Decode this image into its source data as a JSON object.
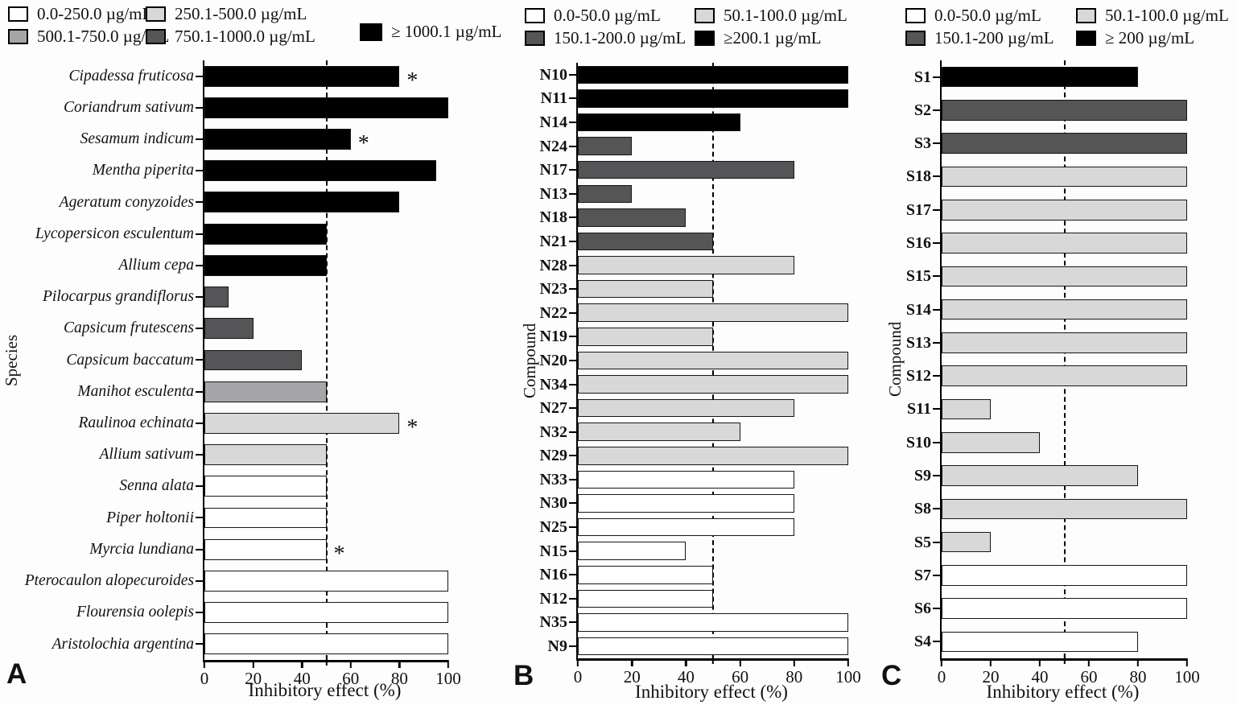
{
  "colors": {
    "white": "#ffffff",
    "light_gray": "#d8d8d8",
    "medium_gray": "#a6a6a9",
    "dark_gray": "#555557",
    "black": "#000000"
  },
  "chart_data": [
    {
      "type": "bar",
      "orientation": "horizontal",
      "panel_label": "A",
      "xlabel": "Inhibitory effect (%)",
      "ylabel": "Species",
      "xlim": [
        0,
        100
      ],
      "xticks": [
        0,
        20,
        40,
        60,
        80,
        100
      ],
      "minor_xticks": [
        50
      ],
      "dashed_line_x": 50,
      "grid": false,
      "legend_position": "top",
      "legend": {
        "rows": [
          [
            {
              "label": "0.0-250.0 µg/mL",
              "color": "white"
            },
            {
              "label": "250.1-500.0 µg/mL",
              "color": "light_gray"
            }
          ],
          [
            {
              "label": "500.1-750.0 µg/mL",
              "color": "medium_gray"
            },
            {
              "label": "750.1-1000.0 µg/mL",
              "color": "dark_gray"
            }
          ]
        ],
        "side": {
          "label": "≥ 1000.1 µg/mL",
          "color": "black"
        }
      },
      "bars": [
        {
          "category": "Cipadessa fruticosa",
          "value": 80,
          "color": "black",
          "annotation": "*"
        },
        {
          "category": "Coriandrum sativum",
          "value": 100,
          "color": "black"
        },
        {
          "category": "Sesamum indicum",
          "value": 60,
          "color": "black",
          "annotation": "*"
        },
        {
          "category": "Mentha piperita",
          "value": 95,
          "color": "black"
        },
        {
          "category": "Ageratum conyzoides",
          "value": 80,
          "color": "black"
        },
        {
          "category": "Lycopersicon esculentum",
          "value": 50,
          "color": "black"
        },
        {
          "category": "Allium cepa",
          "value": 50,
          "color": "black"
        },
        {
          "category": "Pilocarpus grandiflorus",
          "value": 10,
          "color": "dark_gray"
        },
        {
          "category": "Capsicum frutescens",
          "value": 20,
          "color": "dark_gray"
        },
        {
          "category": "Capsicum baccatum",
          "value": 40,
          "color": "dark_gray"
        },
        {
          "category": "Manihot esculenta",
          "value": 50,
          "color": "medium_gray"
        },
        {
          "category": "Raulinoa echinata",
          "value": 80,
          "color": "light_gray",
          "annotation": "*"
        },
        {
          "category": "Allium sativum",
          "value": 50,
          "color": "light_gray"
        },
        {
          "category": "Senna alata",
          "value": 50,
          "color": "white"
        },
        {
          "category": "Piper holtonii",
          "value": 50,
          "color": "white"
        },
        {
          "category": "Myrcia lundiana",
          "value": 50,
          "color": "white",
          "annotation": "*"
        },
        {
          "category": "Pterocaulon alopecuroides",
          "value": 100,
          "color": "white"
        },
        {
          "category": "Flourensia oolepis",
          "value": 100,
          "color": "white"
        },
        {
          "category": "Aristolochia argentina",
          "value": 100,
          "color": "white"
        }
      ]
    },
    {
      "type": "bar",
      "orientation": "horizontal",
      "panel_label": "B",
      "xlabel": "Inhibitory effect (%)",
      "ylabel": "Compound",
      "xlim": [
        0,
        100
      ],
      "xticks": [
        0,
        20,
        40,
        60,
        80,
        100
      ],
      "minor_xticks": [
        50
      ],
      "dashed_line_x": 50,
      "grid": false,
      "legend_position": "top",
      "legend": {
        "rows": [
          [
            {
              "label": "0.0-50.0 µg/mL",
              "color": "white"
            },
            {
              "label": "50.1-100.0 µg/mL",
              "color": "light_gray"
            }
          ],
          [
            {
              "label": "150.1-200.0 µg/mL",
              "color": "dark_gray"
            },
            {
              "label": "≥200.1 µg/mL",
              "color": "black"
            }
          ]
        ]
      },
      "bars": [
        {
          "category": "N10",
          "value": 100,
          "color": "black"
        },
        {
          "category": "N11",
          "value": 100,
          "color": "black"
        },
        {
          "category": "N14",
          "value": 60,
          "color": "black"
        },
        {
          "category": "N24",
          "value": 20,
          "color": "dark_gray"
        },
        {
          "category": "N17",
          "value": 80,
          "color": "dark_gray"
        },
        {
          "category": "N13",
          "value": 20,
          "color": "dark_gray"
        },
        {
          "category": "N18",
          "value": 40,
          "color": "dark_gray"
        },
        {
          "category": "N21",
          "value": 50,
          "color": "dark_gray"
        },
        {
          "category": "N28",
          "value": 80,
          "color": "light_gray"
        },
        {
          "category": "N23",
          "value": 50,
          "color": "light_gray"
        },
        {
          "category": "N22",
          "value": 100,
          "color": "light_gray"
        },
        {
          "category": "N19",
          "value": 50,
          "color": "light_gray"
        },
        {
          "category": "N20",
          "value": 100,
          "color": "light_gray"
        },
        {
          "category": "N34",
          "value": 100,
          "color": "light_gray"
        },
        {
          "category": "N27",
          "value": 80,
          "color": "light_gray"
        },
        {
          "category": "N32",
          "value": 60,
          "color": "light_gray"
        },
        {
          "category": "N29",
          "value": 100,
          "color": "light_gray"
        },
        {
          "category": "N33",
          "value": 80,
          "color": "white"
        },
        {
          "category": "N30",
          "value": 80,
          "color": "white"
        },
        {
          "category": "N25",
          "value": 80,
          "color": "white"
        },
        {
          "category": "N15",
          "value": 40,
          "color": "white"
        },
        {
          "category": "N16",
          "value": 50,
          "color": "white"
        },
        {
          "category": "N12",
          "value": 50,
          "color": "white"
        },
        {
          "category": "N35",
          "value": 100,
          "color": "white"
        },
        {
          "category": "N9",
          "value": 100,
          "color": "white"
        }
      ]
    },
    {
      "type": "bar",
      "orientation": "horizontal",
      "panel_label": "C",
      "xlabel": "Inhibitory effect (%)",
      "ylabel": "Compound",
      "xlim": [
        0,
        100
      ],
      "xticks": [
        0,
        20,
        40,
        60,
        80,
        100
      ],
      "minor_xticks": [
        50
      ],
      "dashed_line_x": 50,
      "grid": false,
      "legend_position": "top",
      "legend": {
        "rows": [
          [
            {
              "label": "0.0-50.0 µg/mL",
              "color": "white"
            },
            {
              "label": "50.1-100.0 µg/mL",
              "color": "light_gray"
            }
          ],
          [
            {
              "label": "150.1-200 µg/mL",
              "color": "dark_gray"
            },
            {
              "label": "≥ 200 µg/mL",
              "color": "black"
            }
          ]
        ]
      },
      "bars": [
        {
          "category": "S1",
          "value": 80,
          "color": "black"
        },
        {
          "category": "S2",
          "value": 100,
          "color": "dark_gray"
        },
        {
          "category": "S3",
          "value": 100,
          "color": "dark_gray"
        },
        {
          "category": "S18",
          "value": 100,
          "color": "light_gray"
        },
        {
          "category": "S17",
          "value": 100,
          "color": "light_gray"
        },
        {
          "category": "S16",
          "value": 100,
          "color": "light_gray"
        },
        {
          "category": "S15",
          "value": 100,
          "color": "light_gray"
        },
        {
          "category": "S14",
          "value": 100,
          "color": "light_gray"
        },
        {
          "category": "S13",
          "value": 100,
          "color": "light_gray"
        },
        {
          "category": "S12",
          "value": 100,
          "color": "light_gray"
        },
        {
          "category": "S11",
          "value": 20,
          "color": "light_gray"
        },
        {
          "category": "S10",
          "value": 40,
          "color": "light_gray"
        },
        {
          "category": "S9",
          "value": 80,
          "color": "light_gray"
        },
        {
          "category": "S8",
          "value": 100,
          "color": "light_gray"
        },
        {
          "category": "S5",
          "value": 20,
          "color": "light_gray"
        },
        {
          "category": "S7",
          "value": 100,
          "color": "white"
        },
        {
          "category": "S6",
          "value": 100,
          "color": "white"
        },
        {
          "category": "S4",
          "value": 80,
          "color": "white"
        }
      ]
    }
  ]
}
